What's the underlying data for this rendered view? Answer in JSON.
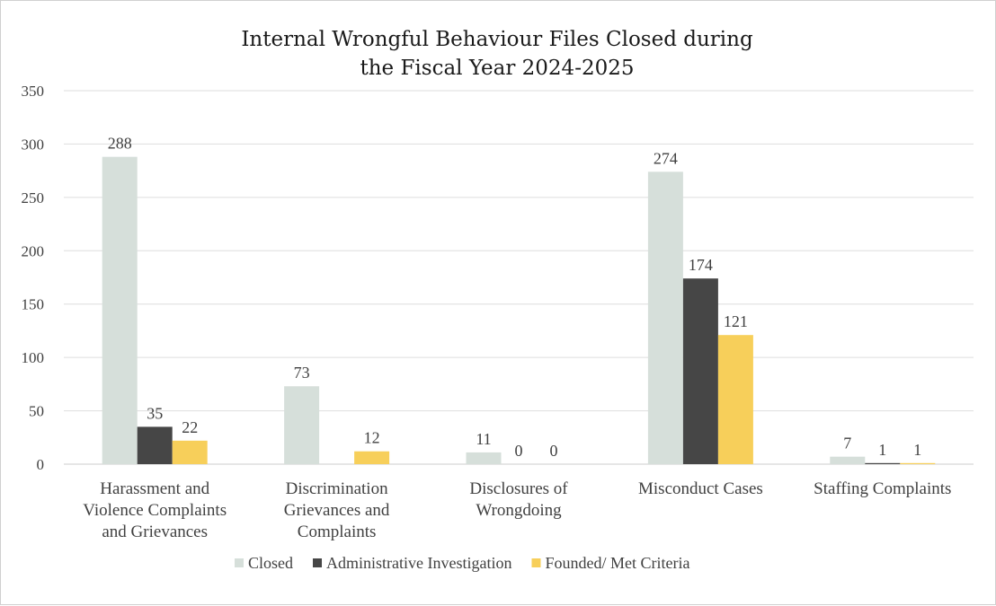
{
  "chart_data": {
    "type": "bar",
    "title": "Internal Wrongful Behaviour Files Closed during the Fiscal Year 2024-2025",
    "title_lines": [
      "Internal Wrongful Behaviour Files Closed during",
      "the Fiscal Year 2024-2025"
    ],
    "categories": [
      "Harassment and Violence Complaints and Grievances",
      "Discrimination Grievances and Complaints",
      "Disclosures of Wrongdoing",
      "Misconduct Cases",
      "Staffing Complaints"
    ],
    "category_lines": [
      [
        "Harassment and",
        "Violence Complaints",
        "and Grievances"
      ],
      [
        "Discrimination",
        "Grievances and",
        "Complaints"
      ],
      [
        "Disclosures of",
        "Wrongdoing"
      ],
      [
        "Misconduct Cases"
      ],
      [
        "Staffing Complaints"
      ]
    ],
    "series": [
      {
        "name": "Closed",
        "color": "#d6dfda",
        "values": [
          288,
          73,
          11,
          274,
          7
        ]
      },
      {
        "name": "Administrative Investigation",
        "color": "#464646",
        "values": [
          35,
          null,
          0,
          174,
          1
        ]
      },
      {
        "name": "Founded/ Met Criteria",
        "color": "#f7cf5a",
        "values": [
          22,
          12,
          0,
          121,
          1
        ]
      }
    ],
    "ylim": [
      0,
      350
    ],
    "yticks": [
      0,
      50,
      100,
      150,
      200,
      250,
      300,
      350
    ],
    "xlabel": "",
    "ylabel": "",
    "grid": true,
    "legend_position": "bottom"
  }
}
